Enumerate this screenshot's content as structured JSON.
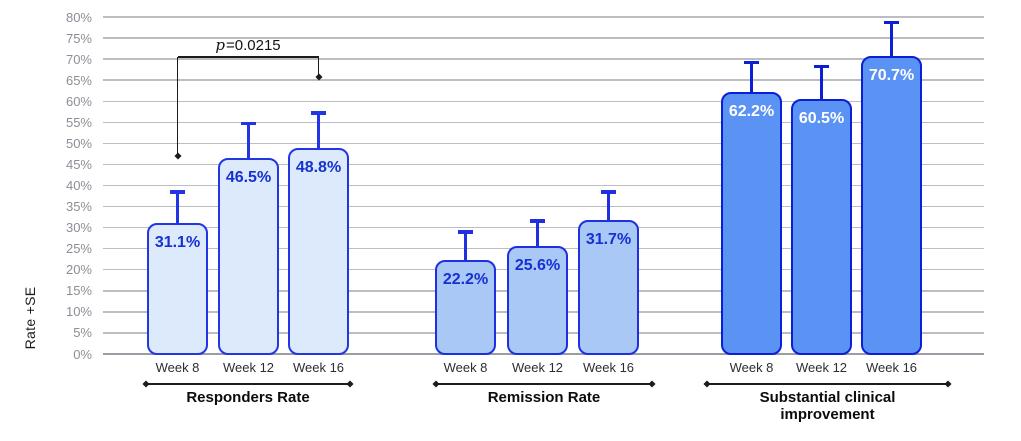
{
  "chart_data": {
    "type": "bar",
    "title": "",
    "ylabel": "Rate +SE",
    "y_axis": {
      "min": 0,
      "max": 80,
      "step": 5,
      "suffix": "%",
      "tick_labels": [
        "0%",
        "5%",
        "10%",
        "15%",
        "20%",
        "25%",
        "30%",
        "35%",
        "40%",
        "45%",
        "50%",
        "55%",
        "60%",
        "65%",
        "70%",
        "75%",
        "80%"
      ]
    },
    "grid": "on",
    "legend": "none",
    "groups": [
      {
        "label": "Responders Rate",
        "categories": [
          "Week 8",
          "Week 12",
          "Week 16"
        ],
        "values": [
          31.1,
          46.5,
          48.8
        ],
        "value_labels": [
          "31.1%",
          "46.5%",
          "48.8%"
        ],
        "error_top_pct": [
          38.5,
          54.8,
          57.3
        ],
        "bar_fill": "#dceafb",
        "bar_stroke": "#2236e4",
        "value_label_color": "#1531d2"
      },
      {
        "label": "Remission Rate",
        "categories": [
          "Week 8",
          "Week 12",
          "Week 16"
        ],
        "values": [
          22.2,
          25.6,
          31.7
        ],
        "value_labels": [
          "22.2%",
          "25.6%",
          "31.7%"
        ],
        "error_top_pct": [
          29.0,
          31.6,
          38.5
        ],
        "bar_fill": "#a9c8f6",
        "bar_stroke": "#1e30e0",
        "value_label_color": "#1531d2"
      },
      {
        "label": "Substantial clinical improvement",
        "categories": [
          "Week 8",
          "Week 12",
          "Week 16"
        ],
        "values": [
          62.2,
          60.5,
          70.7
        ],
        "value_labels": [
          "62.2%",
          "60.5%",
          "70.7%"
        ],
        "error_top_pct": [
          69.3,
          68.3,
          78.7
        ],
        "bar_fill": "#5b93f5",
        "bar_stroke": "#0c1fd6",
        "value_label_color": "#ffffff"
      }
    ],
    "annotation": {
      "label": "p=0.0215",
      "group": 0,
      "from_bar": 0,
      "to_bar": 2,
      "line_pct": 70.5,
      "from_marker_pct": 47.0,
      "to_marker_pct": 65.8
    }
  },
  "colors": {
    "gridline": "#bcbcc2",
    "baseline": "#9c9ca4",
    "tick_text": "#8d8d97",
    "week_text": "#2d2d35",
    "group_title_text": "#0b0b10",
    "annotation": "#1c1c1c",
    "background": "#ffffff"
  }
}
